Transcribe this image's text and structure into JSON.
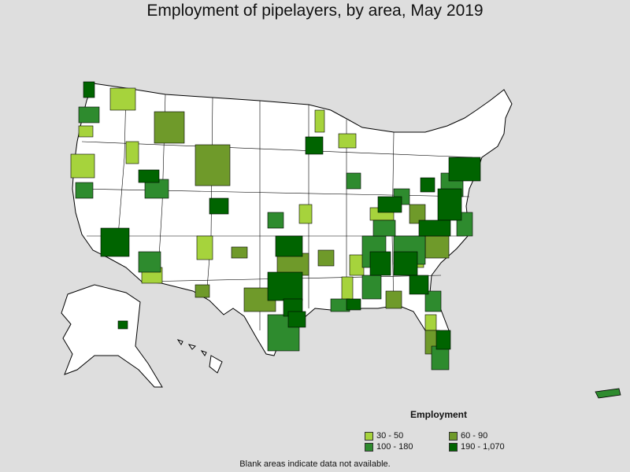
{
  "title": "Employment of pipelayers, by area, May 2019",
  "legend": {
    "title": "Employment",
    "items": [
      {
        "label": "30 - 50",
        "color": "#a6d33c"
      },
      {
        "label": "60 - 90",
        "color": "#6f9a2a"
      },
      {
        "label": "100 - 180",
        "color": "#2e8b2e"
      },
      {
        "label": "190 - 1,070",
        "color": "#006400"
      }
    ]
  },
  "colors": {
    "background": "#dedede",
    "land": "#ffffff",
    "border": "#000000"
  },
  "footnote": "Blank areas indicate data not available."
}
